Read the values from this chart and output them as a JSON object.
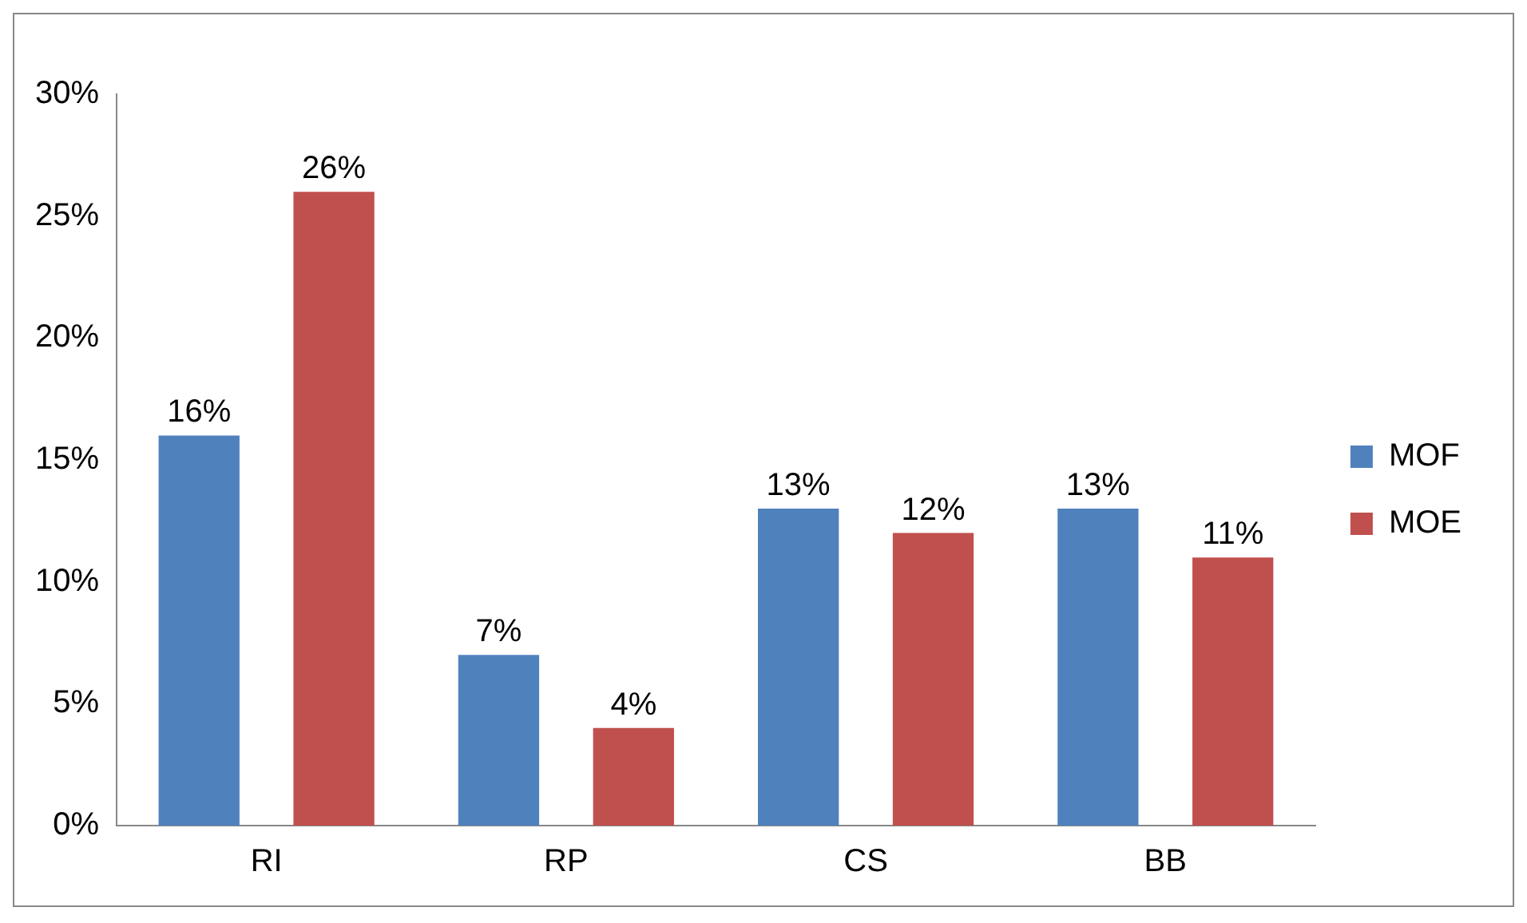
{
  "chart_data": {
    "type": "bar",
    "categories": [
      "RI",
      "RP",
      "CS",
      "BB"
    ],
    "series": [
      {
        "name": "MOF",
        "color": "#4f81bd",
        "values": [
          16,
          7,
          13,
          13
        ],
        "value_labels": [
          "16%",
          "7%",
          "13%",
          "13%"
        ]
      },
      {
        "name": "MOE",
        "color": "#c0504d",
        "values": [
          26,
          4,
          12,
          11
        ],
        "value_labels": [
          "26%",
          "4%",
          "12%",
          "11%"
        ]
      }
    ],
    "ylim": [
      0,
      30
    ],
    "yticks": [
      {
        "value": 0,
        "label": "0%"
      },
      {
        "value": 5,
        "label": "5%"
      },
      {
        "value": 10,
        "label": "10%"
      },
      {
        "value": 15,
        "label": "15%"
      },
      {
        "value": 20,
        "label": "20%"
      },
      {
        "value": 25,
        "label": "25%"
      },
      {
        "value": 30,
        "label": "30%"
      }
    ],
    "grid": false,
    "legend": "right"
  }
}
